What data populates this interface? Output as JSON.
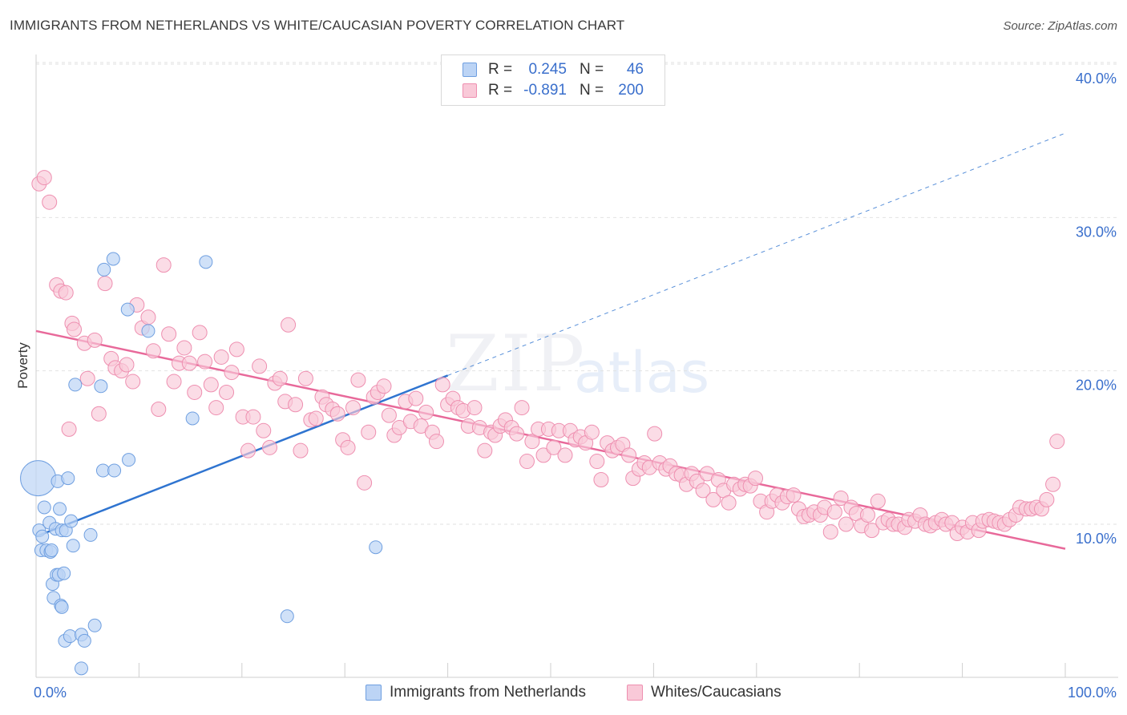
{
  "header": {
    "title": "IMMIGRANTS FROM NETHERLANDS VS WHITE/CAUCASIAN POVERTY CORRELATION CHART",
    "source": "Source: ZipAtlas.com"
  },
  "watermark": {
    "zip": "ZIP",
    "atlas": "atlas"
  },
  "stats": [
    {
      "r_label": "R =",
      "r_value": "0.245",
      "n_label": "N =",
      "n_value": "46",
      "color": "#6f9fe0",
      "fill": "#bcd4f5"
    },
    {
      "r_label": "R =",
      "r_value": "-0.891",
      "n_label": "N =",
      "n_value": "200",
      "color": "#ee8fb0",
      "fill": "#f9c9d8"
    }
  ],
  "colors": {
    "blue": "#2f74d0",
    "pink": "#e8699a",
    "value_text": "#3a6fcc"
  },
  "chart_data": {
    "type": "scatter",
    "title": "IMMIGRANTS FROM NETHERLANDS VS WHITE/CAUCASIAN POVERTY CORRELATION CHART",
    "xlabel": "",
    "ylabel": "Poverty",
    "xlim": [
      0,
      100
    ],
    "ylim": [
      0,
      42
    ],
    "x_tick_labels": [
      "0.0%",
      "100.0%"
    ],
    "y_ticks": [
      10,
      20,
      30,
      40
    ],
    "y_tick_labels": [
      "10.0%",
      "20.0%",
      "30.0%",
      "40.0%"
    ],
    "grid": true,
    "legend_position": "bottom",
    "series": [
      {
        "name": "Immigrants from Netherlands",
        "color": "#6f9fe0",
        "fill": "#bcd4f5",
        "points": [
          [
            0.2,
            13.0
          ],
          [
            0.3,
            9.6
          ],
          [
            0.5,
            8.3
          ],
          [
            0.6,
            9.2
          ],
          [
            0.8,
            11.1
          ],
          [
            1.0,
            8.3
          ],
          [
            1.3,
            10.1
          ],
          [
            1.4,
            8.2
          ],
          [
            1.5,
            8.3
          ],
          [
            1.6,
            6.1
          ],
          [
            1.7,
            5.2
          ],
          [
            1.9,
            9.7
          ],
          [
            2.0,
            6.7
          ],
          [
            2.1,
            12.8
          ],
          [
            2.2,
            6.7
          ],
          [
            2.3,
            11.0
          ],
          [
            2.4,
            4.7
          ],
          [
            2.5,
            4.6
          ],
          [
            2.5,
            9.6
          ],
          [
            2.7,
            6.8
          ],
          [
            2.8,
            2.4
          ],
          [
            2.9,
            9.6
          ],
          [
            3.1,
            13.0
          ],
          [
            3.3,
            2.7
          ],
          [
            3.4,
            10.2
          ],
          [
            3.6,
            8.6
          ],
          [
            3.8,
            19.1
          ],
          [
            4.4,
            2.8
          ],
          [
            4.4,
            0.6
          ],
          [
            4.7,
            2.4
          ],
          [
            5.3,
            9.3
          ],
          [
            5.7,
            3.4
          ],
          [
            6.3,
            19.0
          ],
          [
            6.5,
            13.5
          ],
          [
            6.6,
            26.6
          ],
          [
            7.5,
            27.3
          ],
          [
            7.6,
            13.5
          ],
          [
            8.9,
            24.0
          ],
          [
            9.0,
            14.2
          ],
          [
            10.9,
            22.6
          ],
          [
            15.2,
            16.9
          ],
          [
            16.5,
            27.1
          ],
          [
            24.4,
            4.0
          ],
          [
            33.0,
            8.5
          ]
        ],
        "sizes": [
          22,
          10,
          10,
          10,
          10,
          10,
          10,
          10,
          10,
          10,
          10,
          10,
          10,
          10,
          10,
          10,
          10,
          10,
          10,
          10,
          10,
          10,
          10,
          10,
          10,
          10,
          10,
          10,
          10,
          10,
          10,
          10,
          10,
          10,
          10,
          10,
          10,
          10,
          10,
          10,
          10,
          10,
          10,
          10
        ],
        "trend": {
          "x": [
            0,
            40
          ],
          "y": [
            9.2,
            19.7
          ],
          "dashed_to": [
            100,
            35.5
          ]
        }
      },
      {
        "name": "Whites/Caucasians",
        "color": "#ee8fb0",
        "fill": "#f9c9d8",
        "points": [
          [
            0.3,
            32.2
          ],
          [
            0.8,
            32.6
          ],
          [
            1.3,
            31.0
          ],
          [
            2.0,
            25.6
          ],
          [
            2.4,
            25.2
          ],
          [
            2.9,
            25.1
          ],
          [
            3.2,
            16.2
          ],
          [
            3.5,
            23.1
          ],
          [
            3.7,
            22.7
          ],
          [
            4.7,
            21.8
          ],
          [
            5.0,
            19.5
          ],
          [
            5.7,
            22.0
          ],
          [
            6.1,
            17.2
          ],
          [
            6.7,
            25.7
          ],
          [
            7.3,
            20.8
          ],
          [
            7.7,
            20.2
          ],
          [
            8.3,
            20.0
          ],
          [
            8.8,
            20.4
          ],
          [
            9.4,
            19.3
          ],
          [
            9.8,
            24.3
          ],
          [
            10.3,
            22.8
          ],
          [
            10.9,
            23.5
          ],
          [
            11.4,
            21.3
          ],
          [
            11.9,
            17.5
          ],
          [
            12.4,
            26.9
          ],
          [
            12.9,
            22.4
          ],
          [
            13.4,
            19.3
          ],
          [
            13.9,
            20.5
          ],
          [
            14.4,
            21.5
          ],
          [
            14.9,
            20.5
          ],
          [
            15.4,
            18.6
          ],
          [
            15.9,
            22.5
          ],
          [
            16.4,
            20.6
          ],
          [
            17.0,
            19.1
          ],
          [
            17.5,
            17.6
          ],
          [
            18.0,
            20.9
          ],
          [
            18.5,
            18.6
          ],
          [
            19.0,
            19.9
          ],
          [
            19.5,
            21.4
          ],
          [
            20.1,
            17.0
          ],
          [
            20.6,
            14.8
          ],
          [
            21.1,
            17.0
          ],
          [
            21.7,
            20.3
          ],
          [
            22.1,
            16.1
          ],
          [
            22.7,
            15.0
          ],
          [
            23.2,
            19.2
          ],
          [
            23.7,
            19.5
          ],
          [
            24.2,
            18.0
          ],
          [
            24.5,
            23.0
          ],
          [
            25.2,
            17.8
          ],
          [
            25.7,
            14.8
          ],
          [
            26.2,
            19.5
          ],
          [
            26.7,
            16.8
          ],
          [
            27.2,
            16.9
          ],
          [
            27.8,
            18.3
          ],
          [
            28.2,
            17.8
          ],
          [
            28.8,
            17.5
          ],
          [
            29.3,
            17.2
          ],
          [
            29.8,
            15.5
          ],
          [
            30.3,
            15.0
          ],
          [
            30.8,
            17.6
          ],
          [
            31.3,
            19.4
          ],
          [
            31.9,
            12.7
          ],
          [
            32.3,
            16.0
          ],
          [
            32.8,
            18.3
          ],
          [
            33.2,
            18.6
          ],
          [
            33.8,
            19.0
          ],
          [
            34.3,
            17.1
          ],
          [
            34.8,
            15.8
          ],
          [
            35.3,
            16.3
          ],
          [
            35.9,
            18.0
          ],
          [
            36.4,
            16.7
          ],
          [
            36.9,
            18.2
          ],
          [
            37.4,
            16.4
          ],
          [
            37.9,
            17.3
          ],
          [
            38.5,
            16.0
          ],
          [
            38.9,
            15.4
          ],
          [
            39.5,
            19.1
          ],
          [
            40.0,
            17.8
          ],
          [
            40.5,
            18.2
          ],
          [
            41.0,
            17.6
          ],
          [
            41.5,
            17.4
          ],
          [
            42.0,
            16.4
          ],
          [
            42.6,
            17.6
          ],
          [
            43.1,
            16.3
          ],
          [
            43.6,
            14.8
          ],
          [
            44.2,
            16.0
          ],
          [
            44.6,
            15.8
          ],
          [
            45.1,
            16.4
          ],
          [
            45.6,
            16.8
          ],
          [
            46.2,
            16.3
          ],
          [
            46.7,
            15.9
          ],
          [
            47.2,
            17.6
          ],
          [
            47.7,
            14.1
          ],
          [
            48.2,
            15.4
          ],
          [
            48.8,
            16.2
          ],
          [
            49.3,
            14.5
          ],
          [
            49.8,
            16.2
          ],
          [
            50.3,
            15.0
          ],
          [
            50.8,
            16.1
          ],
          [
            51.4,
            14.5
          ],
          [
            51.9,
            16.1
          ],
          [
            52.4,
            15.5
          ],
          [
            52.9,
            15.7
          ],
          [
            53.4,
            15.3
          ],
          [
            54.0,
            16.0
          ],
          [
            54.5,
            14.1
          ],
          [
            54.9,
            12.9
          ],
          [
            55.5,
            15.3
          ],
          [
            56.0,
            14.8
          ],
          [
            56.5,
            15.0
          ],
          [
            57.0,
            15.2
          ],
          [
            57.6,
            14.5
          ],
          [
            58.0,
            13.0
          ],
          [
            58.6,
            13.6
          ],
          [
            59.1,
            14.0
          ],
          [
            59.6,
            13.7
          ],
          [
            60.1,
            15.9
          ],
          [
            60.6,
            14.0
          ],
          [
            61.2,
            13.6
          ],
          [
            61.6,
            13.8
          ],
          [
            62.2,
            13.3
          ],
          [
            62.7,
            13.2
          ],
          [
            63.2,
            12.6
          ],
          [
            63.7,
            13.3
          ],
          [
            64.2,
            12.8
          ],
          [
            64.8,
            12.2
          ],
          [
            65.2,
            13.3
          ],
          [
            65.8,
            11.6
          ],
          [
            66.3,
            12.9
          ],
          [
            66.8,
            12.2
          ],
          [
            67.3,
            11.4
          ],
          [
            67.8,
            12.6
          ],
          [
            68.4,
            12.3
          ],
          [
            68.9,
            12.6
          ],
          [
            69.4,
            12.5
          ],
          [
            69.9,
            13.0
          ],
          [
            70.4,
            11.5
          ],
          [
            71.0,
            10.8
          ],
          [
            71.5,
            11.5
          ],
          [
            72.0,
            11.9
          ],
          [
            72.5,
            11.4
          ],
          [
            73.0,
            11.8
          ],
          [
            73.6,
            11.9
          ],
          [
            74.1,
            11.0
          ],
          [
            74.6,
            10.5
          ],
          [
            75.1,
            10.6
          ],
          [
            75.6,
            10.8
          ],
          [
            76.2,
            10.6
          ],
          [
            76.6,
            11.1
          ],
          [
            77.2,
            9.5
          ],
          [
            77.6,
            10.8
          ],
          [
            78.2,
            11.7
          ],
          [
            78.7,
            10.0
          ],
          [
            79.2,
            11.1
          ],
          [
            79.7,
            10.7
          ],
          [
            80.2,
            9.9
          ],
          [
            80.8,
            10.6
          ],
          [
            81.2,
            9.6
          ],
          [
            81.8,
            11.5
          ],
          [
            82.3,
            10.1
          ],
          [
            82.8,
            10.3
          ],
          [
            83.3,
            10.0
          ],
          [
            83.8,
            10.0
          ],
          [
            84.4,
            9.8
          ],
          [
            84.8,
            10.3
          ],
          [
            85.4,
            10.2
          ],
          [
            85.9,
            10.6
          ],
          [
            86.4,
            10.0
          ],
          [
            86.9,
            9.9
          ],
          [
            87.4,
            10.1
          ],
          [
            88.0,
            10.3
          ],
          [
            88.4,
            10.0
          ],
          [
            89.0,
            10.1
          ],
          [
            89.5,
            9.4
          ],
          [
            90.0,
            9.8
          ],
          [
            90.5,
            9.5
          ],
          [
            91.0,
            10.1
          ],
          [
            91.6,
            9.6
          ],
          [
            92.0,
            10.2
          ],
          [
            92.6,
            10.3
          ],
          [
            93.1,
            10.2
          ],
          [
            93.6,
            10.1
          ],
          [
            94.1,
            10.0
          ],
          [
            94.6,
            10.3
          ],
          [
            95.2,
            10.6
          ],
          [
            95.6,
            11.1
          ],
          [
            96.2,
            11.0
          ],
          [
            96.7,
            11.0
          ],
          [
            97.2,
            11.1
          ],
          [
            97.7,
            11.0
          ],
          [
            98.2,
            11.6
          ],
          [
            98.8,
            12.6
          ],
          [
            99.2,
            15.4
          ]
        ],
        "trend": {
          "x": [
            0,
            100
          ],
          "y": [
            22.6,
            8.4
          ]
        }
      }
    ]
  }
}
